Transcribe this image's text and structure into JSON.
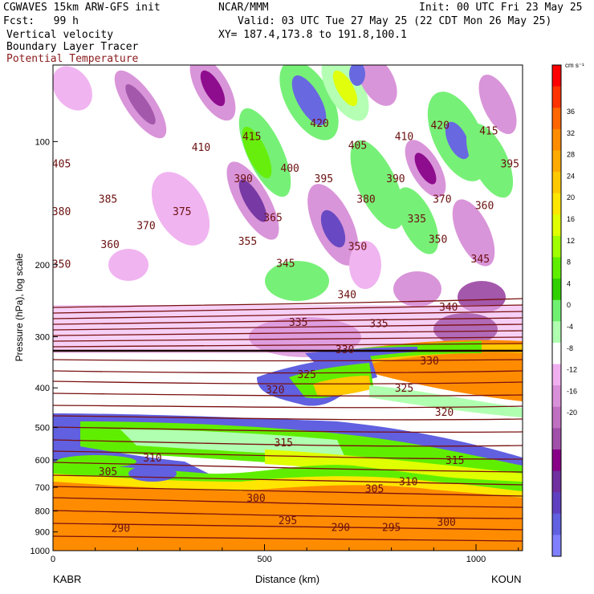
{
  "header": {
    "model_line": "CGWAVES 15km ARW-GFS init",
    "center": "NCAR/MMM",
    "init": "Init: 00 UTC Fri 23 May 25",
    "fcst": "Fcst:   99 h",
    "valid": "Valid: 03 UTC Tue 27 May 25 (22 CDT Mon 26 May 25)",
    "field1": "Vertical velocity",
    "field2": "Boundary Layer Tracer",
    "field3": "Potential Temperature",
    "xy": "XY= 187.4,173.8 to 191.8,100.1"
  },
  "colorbar": {
    "unit": "cm s⁻¹",
    "ticks": [
      "36",
      "32",
      "28",
      "24",
      "20",
      "16",
      "12",
      "8",
      "4",
      "0",
      "-4",
      "-8",
      "-12",
      "-16",
      "-20"
    ],
    "colors": [
      "#ff0000",
      "#ff3300",
      "#ff6600",
      "#ff8c00",
      "#ffaa00",
      "#ffc800",
      "#ffe600",
      "#e0ff00",
      "#a0ff00",
      "#60ee00",
      "#30d000",
      "#70f070",
      "#b0ffb0",
      "#ffffff",
      "#f0b0f0",
      "#d890d8",
      "#c070c0",
      "#a050a8",
      "#880088",
      "#7030a0",
      "#6040c0",
      "#6060e0",
      "#8080ff"
    ]
  },
  "axes": {
    "ylabel": "Pressure (hPa), log scale",
    "xlabel": "Distance (km)",
    "left_station": "KABR",
    "right_station": "KOUN",
    "x_ticks": [
      "0",
      "500",
      "1000"
    ],
    "y_ticks": [
      "100",
      "200",
      "300",
      "400",
      "500",
      "600",
      "700",
      "800",
      "900",
      "1000"
    ]
  },
  "chart_data": {
    "type": "heatmap",
    "title": "Vertical velocity",
    "xlabel": "Distance (km)",
    "ylabel": "Pressure (hPa), log scale",
    "xlim": [
      0,
      1110
    ],
    "ylim": [
      1000,
      65
    ],
    "y_scale": "log",
    "contour_labels": [
      {
        "x": 20,
        "p": 113,
        "v": "405"
      },
      {
        "x": 350,
        "p": 103,
        "v": "410"
      },
      {
        "x": 470,
        "p": 97,
        "v": "415"
      },
      {
        "x": 630,
        "p": 90,
        "v": "420"
      },
      {
        "x": 720,
        "p": 102,
        "v": "405"
      },
      {
        "x": 830,
        "p": 97,
        "v": "410"
      },
      {
        "x": 915,
        "p": 91,
        "v": "420"
      },
      {
        "x": 1030,
        "p": 94,
        "v": "415"
      },
      {
        "x": 1080,
        "p": 113,
        "v": "395"
      },
      {
        "x": 130,
        "p": 138,
        "v": "385"
      },
      {
        "x": 450,
        "p": 123,
        "v": "390"
      },
      {
        "x": 560,
        "p": 116,
        "v": "400"
      },
      {
        "x": 640,
        "p": 123,
        "v": "395"
      },
      {
        "x": 810,
        "p": 123,
        "v": "390"
      },
      {
        "x": 920,
        "p": 138,
        "v": "370"
      },
      {
        "x": 1020,
        "p": 143,
        "v": "360"
      },
      {
        "x": 20,
        "p": 148,
        "v": "380"
      },
      {
        "x": 220,
        "p": 160,
        "v": "370"
      },
      {
        "x": 305,
        "p": 148,
        "v": "375"
      },
      {
        "x": 520,
        "p": 153,
        "v": "365"
      },
      {
        "x": 740,
        "p": 138,
        "v": "380"
      },
      {
        "x": 860,
        "p": 154,
        "v": "335"
      },
      {
        "x": 135,
        "p": 178,
        "v": "360"
      },
      {
        "x": 460,
        "p": 175,
        "v": "355"
      },
      {
        "x": 720,
        "p": 180,
        "v": "350"
      },
      {
        "x": 910,
        "p": 173,
        "v": "350"
      },
      {
        "x": 20,
        "p": 199,
        "v": "350"
      },
      {
        "x": 550,
        "p": 198,
        "v": "345"
      },
      {
        "x": 1010,
        "p": 193,
        "v": "345"
      },
      {
        "x": 695,
        "p": 236,
        "v": "340"
      },
      {
        "x": 935,
        "p": 253,
        "v": "340"
      },
      {
        "x": 580,
        "p": 276,
        "v": "335"
      },
      {
        "x": 770,
        "p": 278,
        "v": "335"
      },
      {
        "x": 690,
        "p": 322,
        "v": "330"
      },
      {
        "x": 890,
        "p": 343,
        "v": "330"
      },
      {
        "x": 600,
        "p": 370,
        "v": "325"
      },
      {
        "x": 830,
        "p": 400,
        "v": "325"
      },
      {
        "x": 525,
        "p": 403,
        "v": "320"
      },
      {
        "x": 925,
        "p": 458,
        "v": "320"
      },
      {
        "x": 235,
        "p": 592,
        "v": "310"
      },
      {
        "x": 545,
        "p": 543,
        "v": "315"
      },
      {
        "x": 950,
        "p": 600,
        "v": "315"
      },
      {
        "x": 130,
        "p": 640,
        "v": "305"
      },
      {
        "x": 480,
        "p": 742,
        "v": "300"
      },
      {
        "x": 760,
        "p": 705,
        "v": "305"
      },
      {
        "x": 840,
        "p": 677,
        "v": "310"
      },
      {
        "x": 555,
        "p": 842,
        "v": "295"
      },
      {
        "x": 680,
        "p": 875,
        "v": "290"
      },
      {
        "x": 800,
        "p": 875,
        "v": "295"
      },
      {
        "x": 930,
        "p": 850,
        "v": "300"
      },
      {
        "x": 160,
        "p": 880,
        "v": "290"
      }
    ]
  }
}
